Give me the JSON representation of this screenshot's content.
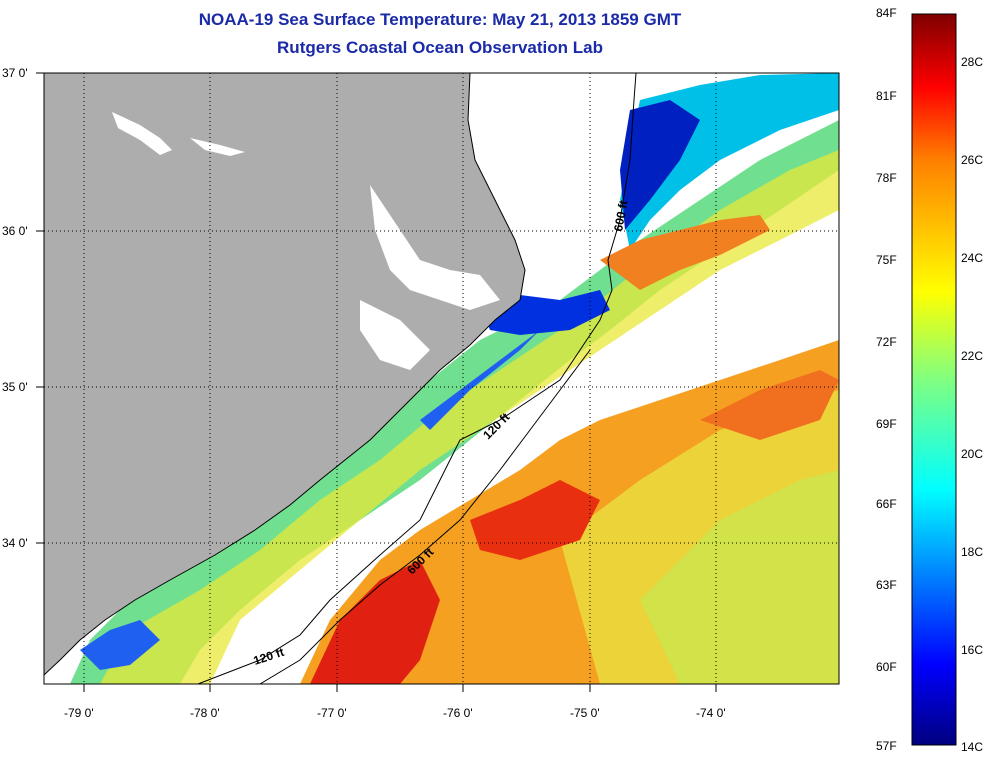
{
  "title": {
    "line1": "NOAA-19 Sea Surface Temperature:  May 21, 2013 1859 GMT",
    "line2": "Rutgers Coastal Ocean Observation Lab"
  },
  "map": {
    "lat_labels": [
      "37 0'",
      "36 0'",
      "35 0'",
      "34 0'"
    ],
    "lon_labels": [
      "-79 0'",
      "-78 0'",
      "-77 0'",
      "-76 0'",
      "-75 0'",
      "-74 0'"
    ],
    "contour_labels": [
      "600 ft",
      "120 ft",
      "600 ft",
      "120 ft"
    ],
    "colors": {
      "land": "#adadad",
      "cloud": "#ffffff",
      "grid": "#000000"
    }
  },
  "colorbar": {
    "fahrenheit_labels": [
      "84F",
      "81F",
      "78F",
      "75F",
      "72F",
      "69F",
      "66F",
      "63F",
      "60F",
      "57F"
    ],
    "celsius_labels": [
      "28C",
      "26C",
      "24C",
      "22C",
      "20C",
      "18C",
      "16C",
      "14C"
    ],
    "stops": [
      "#00007f",
      "#0000ff",
      "#0080ff",
      "#00ffff",
      "#80ff80",
      "#ffff00",
      "#ff8000",
      "#ff0000",
      "#7f0000"
    ]
  }
}
